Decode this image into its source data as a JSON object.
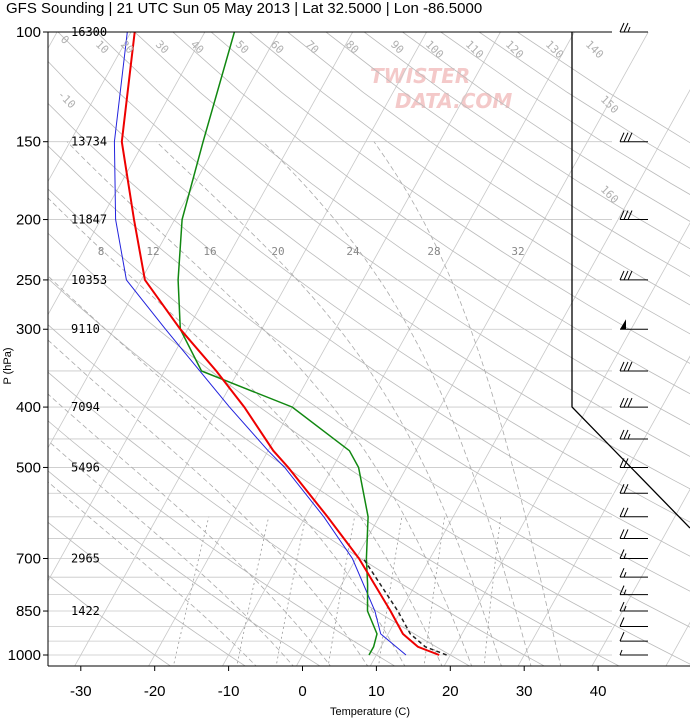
{
  "title": "GFS Sounding | 21 UTC Sun 05 May 2013 | Lat 32.5000 | Lon -86.5000",
  "watermark": [
    "TWISTER",
    "DATA.COM"
  ],
  "chart_data": {
    "type": "skew-t",
    "xlabel": "Temperature (C)",
    "ylabel": "P (hPa)",
    "pressure_ticks": [
      100,
      150,
      200,
      250,
      300,
      400,
      500,
      700,
      850,
      1000
    ],
    "temperature_ticks": [
      -30,
      -20,
      -10,
      0,
      10,
      20,
      30,
      40
    ],
    "xlim": [
      -34,
      50
    ],
    "ylim": [
      1050,
      100
    ],
    "grid": true,
    "heights": [
      {
        "p": 100,
        "label": "16300"
      },
      {
        "p": 150,
        "label": "13734"
      },
      {
        "p": 200,
        "label": "11847"
      },
      {
        "p": 250,
        "label": "10353"
      },
      {
        "p": 300,
        "label": "9110"
      },
      {
        "p": 400,
        "label": "7094"
      },
      {
        "p": 500,
        "label": "5496"
      },
      {
        "p": 700,
        "label": "2965"
      },
      {
        "p": 850,
        "label": "1422"
      }
    ],
    "mixing_ratio_labels": [
      "8",
      "12",
      "16",
      "20",
      "24",
      "28",
      "32"
    ],
    "isotherm_labels": [
      "-10",
      "0",
      "10",
      "20",
      "30",
      "40",
      "50",
      "60",
      "70",
      "80",
      "90",
      "100",
      "110",
      "120",
      "130",
      "140",
      "150",
      "160"
    ],
    "temperature": [
      {
        "p": 1000,
        "t": 18.5
      },
      {
        "p": 970,
        "t": 15.0
      },
      {
        "p": 925,
        "t": 12.0
      },
      {
        "p": 850,
        "t": 8.6
      },
      {
        "p": 700,
        "t": 0.4
      },
      {
        "p": 600,
        "t": -7.0
      },
      {
        "p": 500,
        "t": -16.0
      },
      {
        "p": 470,
        "t": -19.3
      },
      {
        "p": 400,
        "t": -26.5
      },
      {
        "p": 350,
        "t": -33.0
      },
      {
        "p": 300,
        "t": -41.0
      },
      {
        "p": 250,
        "t": -49.5
      },
      {
        "p": 200,
        "t": -55.5
      },
      {
        "p": 150,
        "t": -63.0
      },
      {
        "p": 100,
        "t": -69.5
      }
    ],
    "virtual_temperature": [
      {
        "p": 1000,
        "t": 19.5
      },
      {
        "p": 970,
        "t": 16.0
      },
      {
        "p": 925,
        "t": 13.0
      },
      {
        "p": 850,
        "t": 9.6
      },
      {
        "p": 700,
        "t": 1.0
      }
    ],
    "dewpoint": [
      {
        "p": 1000,
        "t": 9.0
      },
      {
        "p": 970,
        "t": 9.0
      },
      {
        "p": 925,
        "t": 8.5
      },
      {
        "p": 850,
        "t": 5.5
      },
      {
        "p": 770,
        "t": 3.5
      },
      {
        "p": 700,
        "t": 1.4
      },
      {
        "p": 600,
        "t": -1.5
      },
      {
        "p": 500,
        "t": -6.5
      },
      {
        "p": 470,
        "t": -9.0
      },
      {
        "p": 400,
        "t": -20.0
      },
      {
        "p": 350,
        "t": -35.0
      },
      {
        "p": 300,
        "t": -41.0
      },
      {
        "p": 250,
        "t": -45.0
      },
      {
        "p": 200,
        "t": -49.0
      },
      {
        "p": 150,
        "t": -52.0
      },
      {
        "p": 100,
        "t": -56.0
      }
    ],
    "parcel": [
      {
        "p": 1000,
        "t": 14.0
      },
      {
        "p": 925,
        "t": 9.0
      },
      {
        "p": 850,
        "t": 6.5
      },
      {
        "p": 700,
        "t": -0.5
      },
      {
        "p": 600,
        "t": -7.5
      },
      {
        "p": 500,
        "t": -16.5
      },
      {
        "p": 470,
        "t": -20.0
      },
      {
        "p": 400,
        "t": -28.5
      },
      {
        "p": 300,
        "t": -43.0
      },
      {
        "p": 250,
        "t": -52.0
      },
      {
        "p": 200,
        "t": -58.0
      },
      {
        "p": 150,
        "t": -64.0
      },
      {
        "p": 100,
        "t": -70.5
      }
    ],
    "wind_barbs": [
      {
        "p": 100,
        "speed": 25
      },
      {
        "p": 150,
        "speed": 30
      },
      {
        "p": 200,
        "speed": 30
      },
      {
        "p": 250,
        "speed": 30
      },
      {
        "p": 300,
        "speed": 50
      },
      {
        "p": 350,
        "speed": 30
      },
      {
        "p": 400,
        "speed": 30
      },
      {
        "p": 450,
        "speed": 25
      },
      {
        "p": 500,
        "speed": 20
      },
      {
        "p": 550,
        "speed": 20
      },
      {
        "p": 600,
        "speed": 20
      },
      {
        "p": 650,
        "speed": 20
      },
      {
        "p": 700,
        "speed": 15
      },
      {
        "p": 750,
        "speed": 15
      },
      {
        "p": 800,
        "speed": 15
      },
      {
        "p": 850,
        "speed": 15
      },
      {
        "p": 900,
        "speed": 10
      },
      {
        "p": 950,
        "speed": 10
      },
      {
        "p": 1000,
        "speed": 5
      }
    ],
    "colors": {
      "temperature": "#ee0000",
      "virtual_temperature": "#222222",
      "dewpoint": "#118811",
      "parcel": "#2222dd",
      "grid": "#c8c8c8",
      "dry_adiabat": "#bbbbbb",
      "moist_adiabat": "#aaaaaa",
      "mixing_ratio": "#999999",
      "hodograph": "#000000"
    }
  }
}
